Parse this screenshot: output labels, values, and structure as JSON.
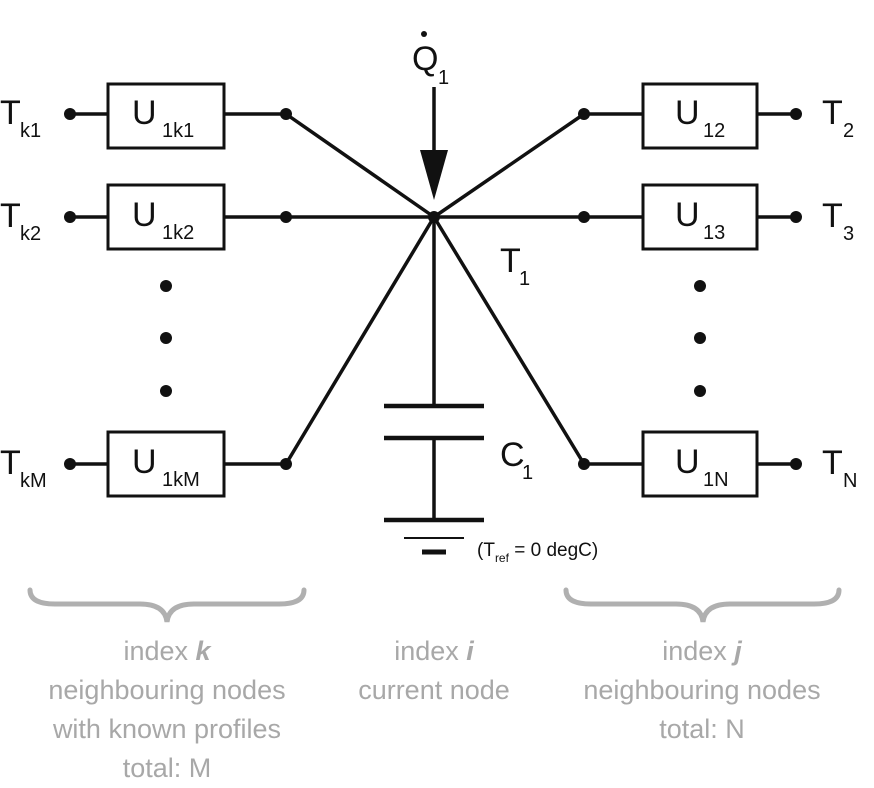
{
  "heat_input": {
    "symbol": "Q",
    "sub": "1"
  },
  "center_node": {
    "symbol": "T",
    "sub": "1"
  },
  "capacitor": {
    "symbol": "C",
    "sub": "1"
  },
  "ground_note": {
    "open": "(T",
    "sub": "ref",
    "rest": " = 0 degC)"
  },
  "left_nodes": [
    {
      "t_sym": "T",
      "t_sub": "k1",
      "u_sym": "U",
      "u_sub": "1k1"
    },
    {
      "t_sym": "T",
      "t_sub": "k2",
      "u_sym": "U",
      "u_sub": "1k2"
    },
    {
      "t_sym": "T",
      "t_sub": "kM",
      "u_sym": "U",
      "u_sub": "1kM"
    }
  ],
  "right_nodes": [
    {
      "t_sym": "T",
      "t_sub": "2",
      "u_sym": "U",
      "u_sub": "12"
    },
    {
      "t_sym": "T",
      "t_sub": "3",
      "u_sym": "U",
      "u_sub": "13"
    },
    {
      "t_sym": "T",
      "t_sub": "N",
      "u_sym": "U",
      "u_sub": "1N"
    }
  ],
  "groups": {
    "left": {
      "index_word": "index ",
      "index_var": "k",
      "lines": [
        "neighbouring nodes",
        "with known profiles",
        "total: M"
      ]
    },
    "middle": {
      "index_word": "index ",
      "index_var": "i",
      "lines": [
        "current node"
      ]
    },
    "right": {
      "index_word": "index ",
      "index_var": "j",
      "lines": [
        "neighbouring nodes",
        "total: N"
      ]
    }
  }
}
